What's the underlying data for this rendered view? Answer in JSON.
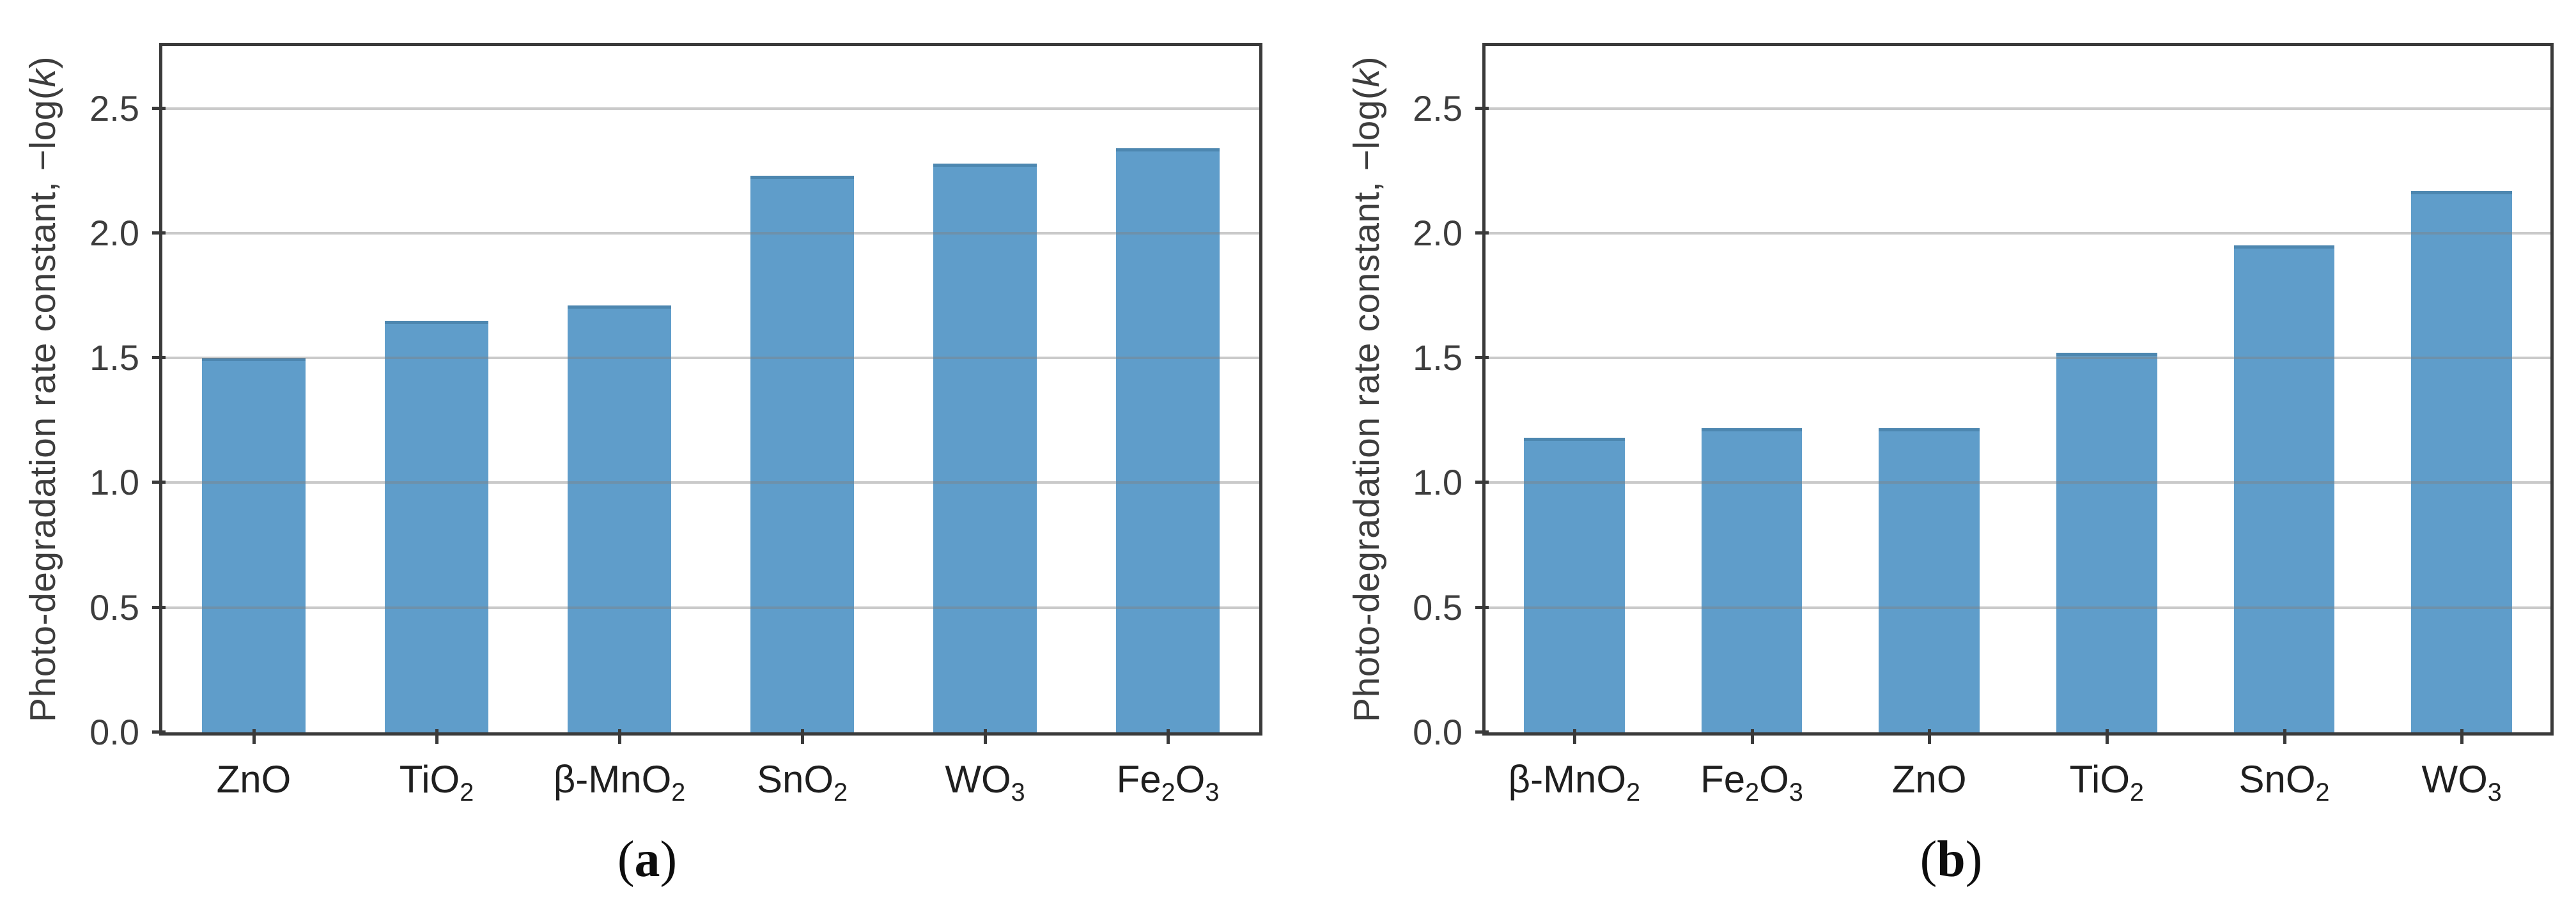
{
  "figure": {
    "background": "#ffffff",
    "ylabel": {
      "prefix": "Photo-degradation rate constant, −log(",
      "italic": "k",
      "suffix": ")"
    },
    "ytick_labels": [
      "0.0",
      "0.5",
      "1.0",
      "1.5",
      "2.0",
      "2.5"
    ],
    "colors": {
      "bar_fill": "#5f9dca",
      "bar_edge": "#4d87b0",
      "gridline": "#c6c6c6",
      "axis": "#3a3a3a",
      "tick_text": "#3d3d3d",
      "category_text": "#1f1f1f"
    }
  },
  "chart_data": [
    {
      "type": "bar",
      "panel_label": {
        "open": "(",
        "letter": "a",
        "close": ")"
      },
      "title": "",
      "xlabel": "",
      "ylabel": "Photo-degradation rate constant, −log(k)",
      "categories": [
        "ZnO",
        "TiO₂",
        "β-MnO₂",
        "SnO₂",
        "WO₃",
        "Fe₂O₃"
      ],
      "values": [
        1.5,
        1.65,
        1.71,
        2.23,
        2.28,
        2.34
      ],
      "yticks": [
        0.0,
        0.5,
        1.0,
        1.5,
        2.0,
        2.5
      ],
      "ylim": [
        0,
        2.75
      ],
      "grid": true,
      "grid_over_bars": true,
      "legend": "none"
    },
    {
      "type": "bar",
      "panel_label": {
        "open": "(",
        "letter": "b",
        "close": ")"
      },
      "title": "",
      "xlabel": "",
      "ylabel": "Photo-degradation rate constant, −log(k)",
      "categories": [
        "β-MnO₂",
        "Fe₂O₃",
        "ZnO",
        "TiO₂",
        "SnO₂",
        "WO₃"
      ],
      "values": [
        1.18,
        1.22,
        1.22,
        1.52,
        1.95,
        2.17
      ],
      "yticks": [
        0.0,
        0.5,
        1.0,
        1.5,
        2.0,
        2.5
      ],
      "ylim": [
        0,
        2.75
      ],
      "grid": true,
      "grid_over_bars": true,
      "legend": "none"
    }
  ]
}
